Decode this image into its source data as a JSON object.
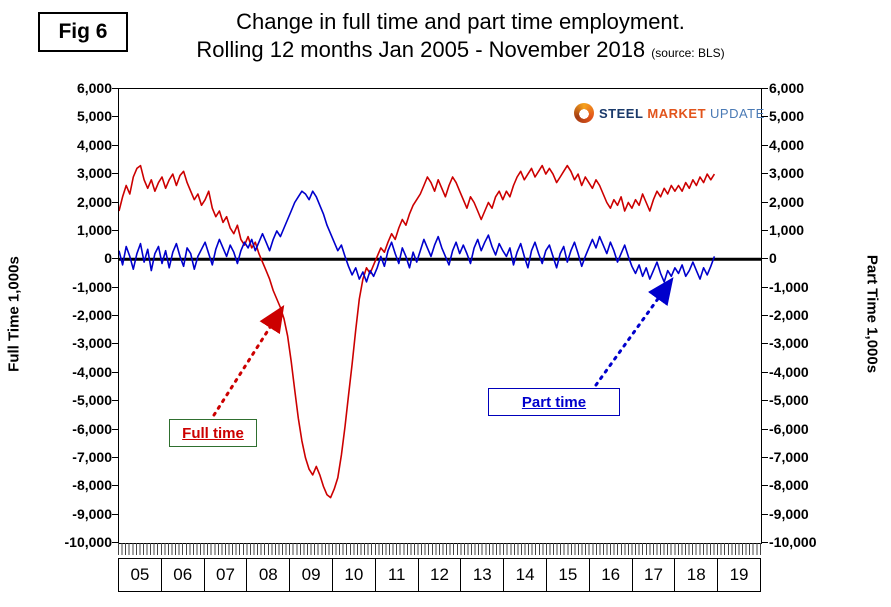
{
  "fig_label": "Fig 6",
  "title": {
    "line1": "Change in full time and part time employment.",
    "line2": "Rolling 12 months Jan 2005 - November 2018",
    "source": "(source: BLS)"
  },
  "axes": {
    "left_label": "Full Time 1,000s",
    "right_label": "Part Time 1,000s"
  },
  "legend": {
    "full_time": "Full time",
    "part_time": "Part time"
  },
  "logo": {
    "steel": "STEEL",
    "market": "MARKET",
    "update": "UPDATE"
  },
  "colors": {
    "full_time": "#cc0000",
    "part_time": "#0000cc",
    "zero_line": "#000000"
  },
  "chart_data": {
    "type": "line",
    "title": "Change in full time and part time employment. Rolling 12 months Jan 2005 - November 2018",
    "xlabel": "",
    "ylabel_left": "Full Time 1,000s",
    "ylabel_right": "Part Time 1,000s",
    "ylim": [
      -10000,
      6000
    ],
    "ytick_step": 1000,
    "x_start": "2005-01",
    "x_end": "2018-11",
    "x_total_months": 180,
    "year_labels": [
      "05",
      "06",
      "07",
      "08",
      "09",
      "10",
      "11",
      "12",
      "13",
      "14",
      "15",
      "16",
      "17",
      "18",
      "19"
    ],
    "grid": false,
    "legend_position": "in-plot callout boxes",
    "series": [
      {
        "name": "Full time",
        "color": "#cc0000",
        "values": [
          1700,
          2200,
          2600,
          2300,
          2900,
          3200,
          3300,
          2800,
          2500,
          2800,
          2400,
          2700,
          2900,
          2500,
          2800,
          3000,
          2600,
          2950,
          3100,
          2700,
          2400,
          2100,
          2300,
          1900,
          2100,
          2400,
          1800,
          1500,
          1700,
          1300,
          1500,
          1100,
          900,
          1200,
          700,
          500,
          800,
          400,
          600,
          200,
          -100,
          -400,
          -700,
          -1100,
          -1400,
          -1700,
          -2100,
          -2700,
          -3600,
          -4600,
          -5600,
          -6400,
          -7000,
          -7400,
          -7600,
          -7300,
          -7600,
          -8000,
          -8300,
          -8400,
          -8100,
          -7700,
          -6900,
          -5900,
          -4800,
          -3700,
          -2500,
          -1400,
          -700,
          -300,
          -500,
          -200,
          100,
          400,
          250,
          600,
          900,
          700,
          1100,
          1400,
          1200,
          1600,
          1900,
          2100,
          2300,
          2600,
          2900,
          2700,
          2400,
          2800,
          2500,
          2200,
          2600,
          2900,
          2700,
          2400,
          2100,
          1800,
          2200,
          2000,
          1700,
          1400,
          1700,
          2000,
          1800,
          2200,
          2400,
          2100,
          2400,
          2200,
          2600,
          2900,
          3100,
          2800,
          3000,
          3200,
          2900,
          3100,
          3300,
          3000,
          3200,
          3000,
          2700,
          2900,
          3100,
          3300,
          3100,
          2800,
          3000,
          2600,
          2900,
          2700,
          2500,
          2800,
          2600,
          2300,
          2000,
          1800,
          2100,
          1900,
          2200,
          1700,
          2000,
          1800,
          2100,
          1900,
          2300,
          2000,
          1700,
          2100,
          2400,
          2200,
          2500,
          2300,
          2600,
          2400,
          2600,
          2400,
          2700,
          2500,
          2800,
          2600,
          2900,
          2700,
          3000,
          2800,
          3000
        ]
      },
      {
        "name": "Part time",
        "color": "#0000cc",
        "values": [
          300,
          -200,
          450,
          100,
          -350,
          200,
          550,
          -100,
          350,
          -400,
          200,
          450,
          -150,
          300,
          -300,
          250,
          550,
          100,
          -250,
          400,
          200,
          -350,
          100,
          350,
          600,
          200,
          -200,
          350,
          700,
          400,
          100,
          500,
          250,
          -150,
          300,
          600,
          400,
          700,
          300,
          600,
          900,
          600,
          300,
          700,
          1000,
          800,
          1100,
          1400,
          1700,
          2000,
          2200,
          2400,
          2300,
          2100,
          2400,
          2200,
          1900,
          1600,
          1200,
          900,
          600,
          300,
          500,
          100,
          -250,
          -550,
          -300,
          -700,
          -450,
          -800,
          -400,
          -600,
          -300,
          100,
          -250,
          300,
          600,
          200,
          -150,
          400,
          100,
          -300,
          250,
          -100,
          300,
          700,
          400,
          100,
          500,
          800,
          400,
          100,
          -200,
          300,
          600,
          200,
          500,
          200,
          -150,
          400,
          700,
          300,
          600,
          850,
          450,
          150,
          550,
          300,
          100,
          400,
          -200,
          250,
          550,
          100,
          -300,
          300,
          600,
          200,
          -150,
          300,
          500,
          100,
          -300,
          200,
          450,
          -100,
          300,
          600,
          200,
          -250,
          100,
          400,
          700,
          400,
          800,
          500,
          200,
          600,
          300,
          -100,
          200,
          500,
          100,
          -250,
          -500,
          -200,
          -600,
          -300,
          -700,
          -400,
          -100,
          -500,
          -800,
          -400,
          -600,
          -300,
          -500,
          -200,
          -600,
          -400,
          -100,
          -400,
          -700,
          -300,
          -550,
          -250,
          100
        ]
      }
    ]
  }
}
